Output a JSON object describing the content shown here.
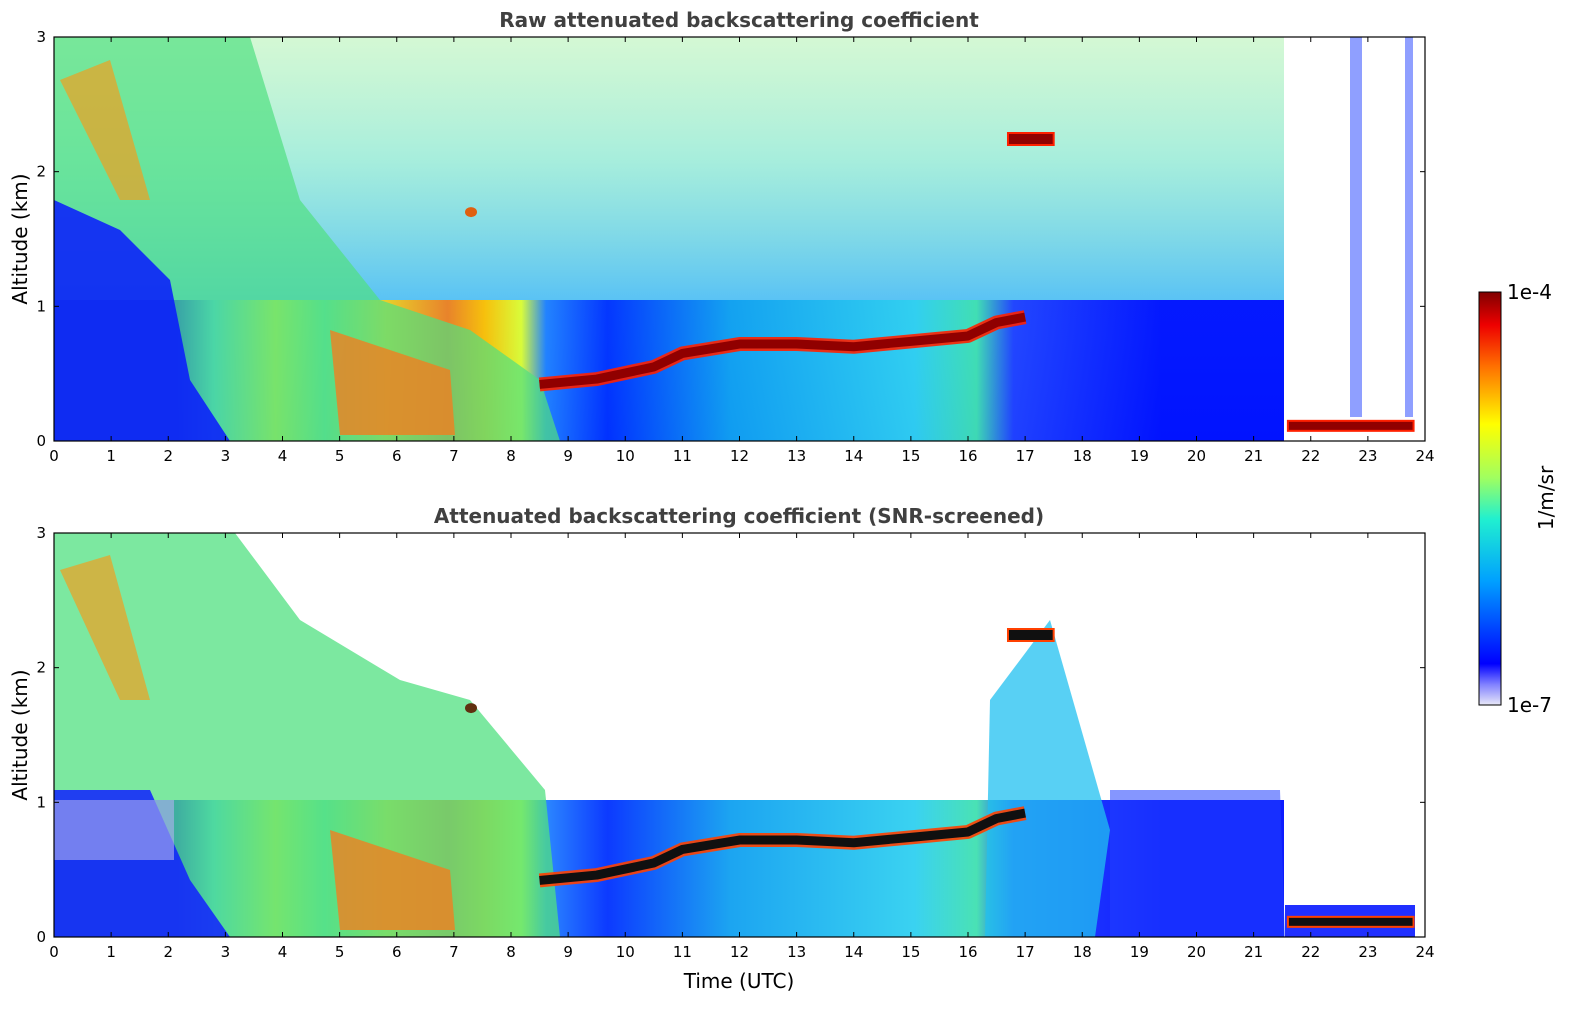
{
  "chart_data": {
    "type": "heatmap",
    "panels": [
      {
        "id": "raw",
        "title": "Raw attenuated backscattering coefficient",
        "xlabel": "",
        "ylabel": "Altitude (km)",
        "xlim": [
          0,
          24
        ],
        "ylim": [
          0,
          3
        ],
        "xticks": [
          "0",
          "1",
          "2",
          "3",
          "4",
          "5",
          "6",
          "7",
          "8",
          "9",
          "10",
          "11",
          "12",
          "13",
          "14",
          "15",
          "16",
          "17",
          "18",
          "19",
          "20",
          "21",
          "22",
          "23",
          "24"
        ],
        "yticks": [
          "0",
          "1",
          "2",
          "3"
        ],
        "screened": false
      },
      {
        "id": "snr",
        "title": "Attenuated backscattering coefficient (SNR-screened)",
        "xlabel": "Time (UTC)",
        "ylabel": "Altitude (km)",
        "xlim": [
          0,
          24
        ],
        "ylim": [
          0,
          3
        ],
        "xticks": [
          "0",
          "1",
          "2",
          "3",
          "4",
          "5",
          "6",
          "7",
          "8",
          "9",
          "10",
          "11",
          "12",
          "13",
          "14",
          "15",
          "16",
          "17",
          "18",
          "19",
          "20",
          "21",
          "22",
          "23",
          "24"
        ],
        "yticks": [
          "0",
          "1",
          "2",
          "3"
        ],
        "screened": true
      }
    ],
    "colorbar": {
      "label": "1/m/sr",
      "min_label": "1e-7",
      "max_label": "1e-4",
      "scale": "log",
      "colormap": "jet"
    },
    "features": {
      "boundary_layer_top_km": [
        {
          "t": 8.5,
          "z": 0.42
        },
        {
          "t": 9.5,
          "z": 0.46
        },
        {
          "t": 10.5,
          "z": 0.55
        },
        {
          "t": 11.0,
          "z": 0.65
        },
        {
          "t": 12.0,
          "z": 0.72
        },
        {
          "t": 13.0,
          "z": 0.72
        },
        {
          "t": 14.0,
          "z": 0.7
        },
        {
          "t": 15.0,
          "z": 0.74
        },
        {
          "t": 16.0,
          "z": 0.78
        },
        {
          "t": 16.5,
          "z": 0.88
        },
        {
          "t": 17.0,
          "z": 0.92
        }
      ],
      "elevated_cloud": {
        "t_start": 16.7,
        "t_end": 17.5,
        "z": 2.25
      },
      "low_cloud_late": {
        "t_start": 21.6,
        "t_end": 23.8,
        "z": 0.12
      },
      "small_cloud": {
        "t": 7.3,
        "z": 1.7
      }
    }
  }
}
